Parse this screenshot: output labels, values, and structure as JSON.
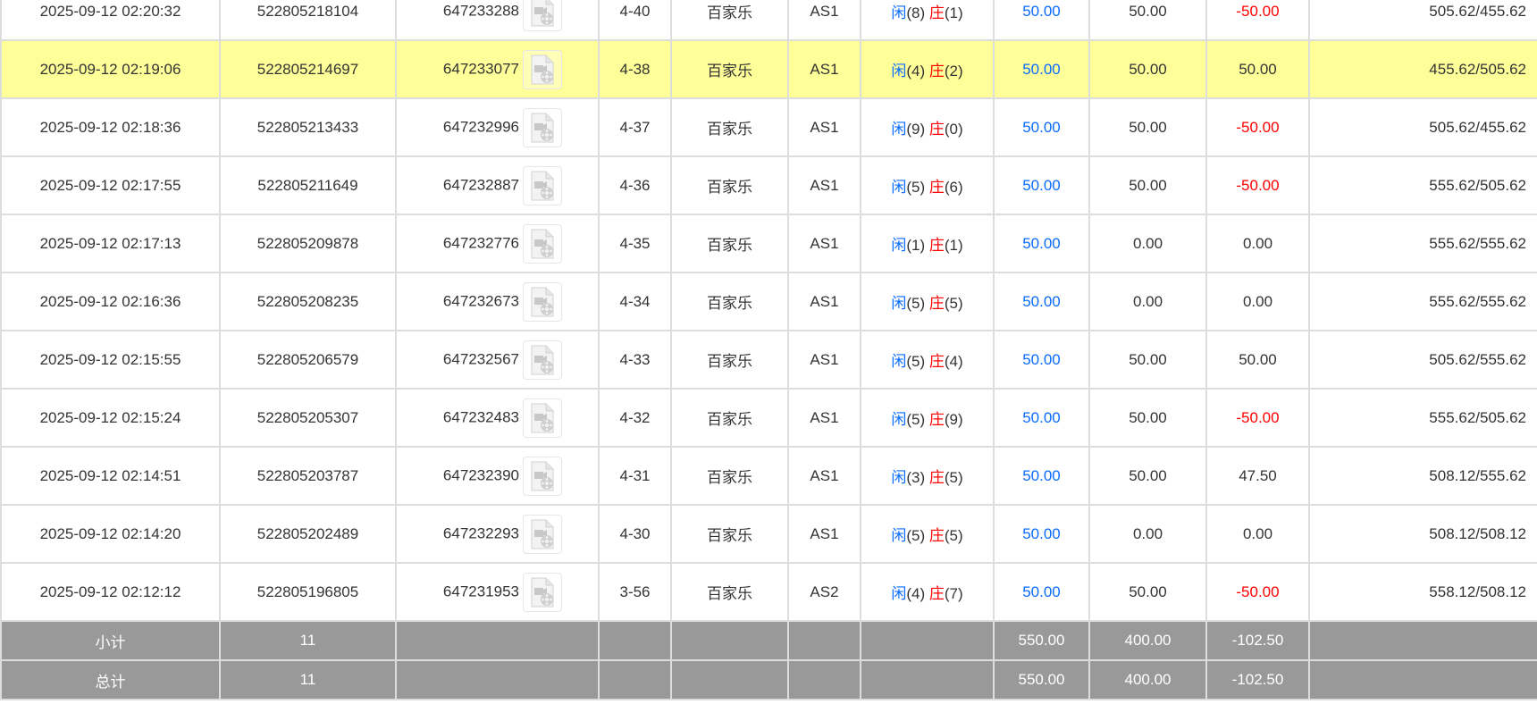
{
  "rows": [
    {
      "time": "2025-09-12 02:20:32",
      "bet_id": "522805218104",
      "game_id": "647233288",
      "round": "4-40",
      "game": "百家乐",
      "table": "AS1",
      "player_label": "闲",
      "player": "(8)",
      "banker_label": "庄",
      "banker": "(1)",
      "bet": "50.00",
      "valid": "50.00",
      "win": "-50.00",
      "balance": "505.62/455.62",
      "neg": true
    },
    {
      "time": "2025-09-12 02:19:06",
      "bet_id": "522805214697",
      "game_id": "647233077",
      "round": "4-38",
      "game": "百家乐",
      "table": "AS1",
      "player_label": "闲",
      "player": "(4)",
      "banker_label": "庄",
      "banker": "(2)",
      "bet": "50.00",
      "valid": "50.00",
      "win": "50.00",
      "balance": "455.62/505.62",
      "neg": false,
      "highlighted": true
    },
    {
      "time": "2025-09-12 02:18:36",
      "bet_id": "522805213433",
      "game_id": "647232996",
      "round": "4-37",
      "game": "百家乐",
      "table": "AS1",
      "player_label": "闲",
      "player": "(9)",
      "banker_label": "庄",
      "banker": "(0)",
      "bet": "50.00",
      "valid": "50.00",
      "win": "-50.00",
      "balance": "505.62/455.62",
      "neg": true
    },
    {
      "time": "2025-09-12 02:17:55",
      "bet_id": "522805211649",
      "game_id": "647232887",
      "round": "4-36",
      "game": "百家乐",
      "table": "AS1",
      "player_label": "闲",
      "player": "(5)",
      "banker_label": "庄",
      "banker": "(6)",
      "bet": "50.00",
      "valid": "50.00",
      "win": "-50.00",
      "balance": "555.62/505.62",
      "neg": true
    },
    {
      "time": "2025-09-12 02:17:13",
      "bet_id": "522805209878",
      "game_id": "647232776",
      "round": "4-35",
      "game": "百家乐",
      "table": "AS1",
      "player_label": "闲",
      "player": "(1)",
      "banker_label": "庄",
      "banker": "(1)",
      "bet": "50.00",
      "valid": "0.00",
      "win": "0.00",
      "balance": "555.62/555.62",
      "neg": false
    },
    {
      "time": "2025-09-12 02:16:36",
      "bet_id": "522805208235",
      "game_id": "647232673",
      "round": "4-34",
      "game": "百家乐",
      "table": "AS1",
      "player_label": "闲",
      "player": "(5)",
      "banker_label": "庄",
      "banker": "(5)",
      "bet": "50.00",
      "valid": "0.00",
      "win": "0.00",
      "balance": "555.62/555.62",
      "neg": false
    },
    {
      "time": "2025-09-12 02:15:55",
      "bet_id": "522805206579",
      "game_id": "647232567",
      "round": "4-33",
      "game": "百家乐",
      "table": "AS1",
      "player_label": "闲",
      "player": "(5)",
      "banker_label": "庄",
      "banker": "(4)",
      "bet": "50.00",
      "valid": "50.00",
      "win": "50.00",
      "balance": "505.62/555.62",
      "neg": false
    },
    {
      "time": "2025-09-12 02:15:24",
      "bet_id": "522805205307",
      "game_id": "647232483",
      "round": "4-32",
      "game": "百家乐",
      "table": "AS1",
      "player_label": "闲",
      "player": "(5)",
      "banker_label": "庄",
      "banker": "(9)",
      "bet": "50.00",
      "valid": "50.00",
      "win": "-50.00",
      "balance": "555.62/505.62",
      "neg": true
    },
    {
      "time": "2025-09-12 02:14:51",
      "bet_id": "522805203787",
      "game_id": "647232390",
      "round": "4-31",
      "game": "百家乐",
      "table": "AS1",
      "player_label": "闲",
      "player": "(3)",
      "banker_label": "庄",
      "banker": "(5)",
      "bet": "50.00",
      "valid": "50.00",
      "win": "47.50",
      "balance": "508.12/555.62",
      "neg": false
    },
    {
      "time": "2025-09-12 02:14:20",
      "bet_id": "522805202489",
      "game_id": "647232293",
      "round": "4-30",
      "game": "百家乐",
      "table": "AS1",
      "player_label": "闲",
      "player": "(5)",
      "banker_label": "庄",
      "banker": "(5)",
      "bet": "50.00",
      "valid": "0.00",
      "win": "0.00",
      "balance": "508.12/508.12",
      "neg": false
    },
    {
      "time": "2025-09-12 02:12:12",
      "bet_id": "522805196805",
      "game_id": "647231953",
      "round": "3-56",
      "game": "百家乐",
      "table": "AS2",
      "player_label": "闲",
      "player": "(4)",
      "banker_label": "庄",
      "banker": "(7)",
      "bet": "50.00",
      "valid": "50.00",
      "win": "-50.00",
      "balance": "558.12/508.12",
      "neg": true
    }
  ],
  "subtotal": {
    "label": "小计",
    "count": "11",
    "bet": "550.00",
    "valid": "400.00",
    "win": "-102.50"
  },
  "total": {
    "label": "总计",
    "count": "11",
    "bet": "550.00",
    "valid": "400.00",
    "win": "-102.50"
  },
  "colors": {
    "highlight": "#ffff99",
    "footer": "#999999",
    "positive_blue": "#0a6cff",
    "negative_red": "#ff0000"
  },
  "icons": {
    "replay": "video-file-icon"
  }
}
